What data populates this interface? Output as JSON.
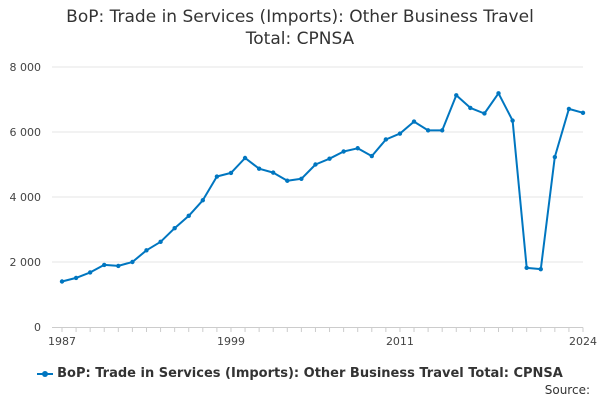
{
  "chart_data": {
    "type": "line",
    "title_lines": [
      "BoP: Trade in Services (Imports): Other Business Travel",
      "Total: CPNSA"
    ],
    "xlabel": "",
    "ylabel": "",
    "x": [
      1987,
      1988,
      1989,
      1990,
      1991,
      1992,
      1993,
      1994,
      1995,
      1996,
      1997,
      1998,
      1999,
      2000,
      2001,
      2002,
      2003,
      2004,
      2005,
      2006,
      2007,
      2008,
      2009,
      2010,
      2011,
      2012,
      2013,
      2014,
      2015,
      2016,
      2017,
      2018,
      2019,
      2020,
      2021,
      2022,
      2023,
      2024
    ],
    "series": [
      {
        "name": "BoP: Trade in Services (Imports): Other Business Travel Total: CPNSA",
        "values": [
          1400,
          1510,
          1680,
          1910,
          1880,
          2000,
          2360,
          2620,
          3040,
          3420,
          3900,
          4630,
          4740,
          5200,
          4870,
          4750,
          4500,
          4560,
          5000,
          5180,
          5400,
          5500,
          5260,
          5770,
          5950,
          6320,
          6050,
          6050,
          7130,
          6740,
          6570,
          7190,
          6350,
          1820,
          1780,
          5230,
          6710,
          6590
        ]
      }
    ],
    "xticks": [
      1987,
      1999,
      2011,
      2024
    ],
    "yticks": [
      0,
      2000,
      4000,
      6000,
      8000
    ],
    "ytick_labels": [
      "0",
      "2 000",
      "4 000",
      "6 000",
      "8 000"
    ],
    "ylim": [
      0,
      8000
    ],
    "grid": "horizontal",
    "legend_position": "bottom",
    "line_color": "#0076c0",
    "grid_color": "#e6e6e6",
    "text_color": "#333333"
  },
  "footer": {
    "source_label": "Source:"
  }
}
